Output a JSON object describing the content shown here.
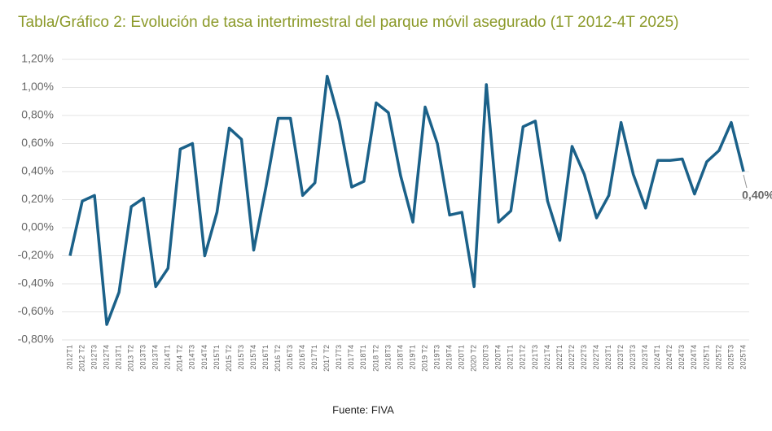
{
  "chart_data": {
    "type": "line",
    "title": "Tabla/Gráfico 2: Evolución de tasa intertrimestral del parque móvil asegurado (1T 2012-4T 2025)",
    "source": "Fuente: FIVA",
    "categories": [
      "2012T1",
      "2012 T2",
      "2012T3",
      "2012T4",
      "2013T1",
      "2013 T2",
      "2013T3",
      "2013T4",
      "2014T1",
      "2014 T2",
      "2014T3",
      "2014T4",
      "2015T1",
      "2015 T2",
      "2015T3",
      "2015T4",
      "2016T1",
      "2016 T2",
      "2016T3",
      "2016T4",
      "2017T1",
      "2017 T2",
      "2017T3",
      "2017T4",
      "2018T1",
      "2018 T2",
      "2018T3",
      "2018T4",
      "2019T1",
      "2019 T2",
      "2019T3",
      "2019T4",
      "2020T1",
      "2020 T2",
      "2020T3",
      "2020T4",
      "2021T1",
      "2021T2",
      "2021T3",
      "2021T4",
      "2022T1",
      "2022T2",
      "2022T3",
      "2022T4",
      "2023T1",
      "2023T2",
      "2023T3",
      "2023T4",
      "2024T1",
      "2024T2",
      "2024T3",
      "2024T4",
      "2025T1",
      "2025T2",
      "2025T3",
      "2025T4"
    ],
    "series": [
      {
        "color": "#1b6189",
        "values": [
          -0.2,
          0.19,
          0.23,
          -0.69,
          -0.46,
          0.15,
          0.21,
          -0.42,
          -0.29,
          0.56,
          0.6,
          -0.2,
          0.11,
          0.71,
          0.63,
          -0.16,
          0.29,
          0.78,
          0.78,
          0.23,
          0.32,
          1.08,
          0.76,
          0.29,
          0.33,
          0.89,
          0.82,
          0.37,
          0.04,
          0.86,
          0.6,
          0.09,
          0.11,
          -0.42,
          1.02,
          0.04,
          0.12,
          0.72,
          0.76,
          0.19,
          -0.09,
          0.58,
          0.38,
          0.07,
          0.23,
          0.75,
          0.38,
          0.14,
          0.48,
          0.48,
          0.49,
          0.24,
          0.47,
          0.55,
          0.75,
          0.4
        ],
        "value_labels": [
          null,
          null,
          null,
          null,
          null,
          null,
          null,
          null,
          null,
          null,
          null,
          null,
          null,
          null,
          null,
          null,
          null,
          null,
          null,
          null,
          null,
          null,
          null,
          null,
          null,
          null,
          null,
          null,
          null,
          null,
          null,
          null,
          null,
          null,
          null,
          null,
          null,
          null,
          null,
          null,
          null,
          null,
          null,
          null,
          null,
          null,
          null,
          null,
          null,
          null,
          null,
          null,
          null,
          null,
          null,
          "0,40%"
        ]
      }
    ],
    "ylim": [
      -0.8,
      1.2
    ],
    "yticks": [
      {
        "value": -0.8,
        "label": "-0,80%"
      },
      {
        "value": -0.6,
        "label": "-0,60%"
      },
      {
        "value": -0.4,
        "label": "-0,40%"
      },
      {
        "value": -0.2,
        "label": "-0,20%"
      },
      {
        "value": 0,
        "label": "0,00%"
      },
      {
        "value": 0.2,
        "label": "0,20%"
      },
      {
        "value": 0.4,
        "label": "0,40%"
      },
      {
        "value": 0.6,
        "label": "0,60%"
      },
      {
        "value": 0.8,
        "label": "0,80%"
      },
      {
        "value": 1.0,
        "label": "1,00%"
      },
      {
        "value": 1.2,
        "label": "1,20%"
      }
    ],
    "grid": true
  }
}
